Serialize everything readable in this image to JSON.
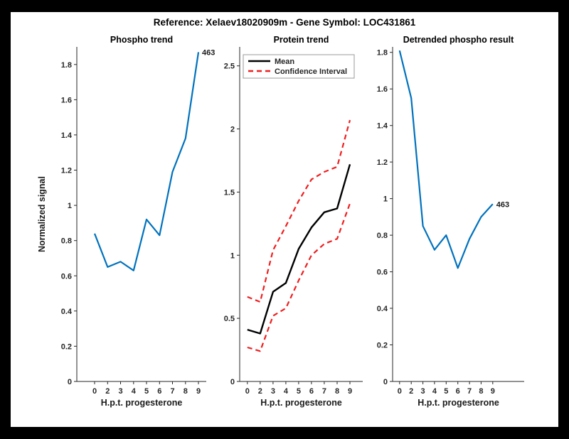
{
  "header": {
    "title": "Reference:  Xelaev18020909m - Gene Symbol:  LOC431861"
  },
  "chart_data": [
    {
      "type": "line",
      "title": "Phospho trend",
      "xlabel": "H.p.t. progesterone",
      "ylabel": "Normalized signal",
      "x_tick_labels": [
        "0",
        "2",
        "3",
        "4",
        "5",
        "6",
        "7",
        "8",
        "9"
      ],
      "yticks": [
        "0",
        "0.2",
        "0.4",
        "0.6",
        "0.8",
        "1",
        "1.2",
        "1.4",
        "1.6",
        "1.8"
      ],
      "ylim": [
        0,
        1.9
      ],
      "xlim": [
        -1.37,
        8.6
      ],
      "grid": false,
      "legend_position": "none",
      "series": [
        {
          "name": "phospho-signal",
          "color": "#0072bd",
          "dash": false,
          "values": [
            0.84,
            0.65,
            0.68,
            0.63,
            0.92,
            0.83,
            1.19,
            1.38,
            1.87
          ],
          "end_label": "463"
        }
      ]
    },
    {
      "type": "line",
      "title": "Protein trend",
      "xlabel": "H.p.t. progesterone",
      "ylabel": "",
      "x_tick_labels": [
        "0",
        "2",
        "3",
        "4",
        "5",
        "6",
        "7",
        "8",
        "9"
      ],
      "yticks": [
        "0",
        "0.5",
        "1",
        "1.5",
        "2",
        "2.5"
      ],
      "ylim": [
        0,
        2.65
      ],
      "xlim": [
        -0.6,
        9.0
      ],
      "grid": false,
      "legend_position": "top-left",
      "legend": {
        "entries": [
          {
            "label": "Mean",
            "color": "#000000",
            "dash": false
          },
          {
            "label": "Confidence Interval",
            "color": "#f01e1e",
            "dash": true
          }
        ]
      },
      "series": [
        {
          "name": "confidence-upper",
          "color": "#f01e1e",
          "dash": true,
          "values": [
            0.67,
            0.63,
            1.04,
            1.23,
            1.43,
            1.6,
            1.66,
            1.7,
            2.07
          ],
          "end_label": null
        },
        {
          "name": "confidence-lower",
          "color": "#f01e1e",
          "dash": true,
          "values": [
            0.27,
            0.24,
            0.52,
            0.58,
            0.8,
            1.0,
            1.09,
            1.13,
            1.41
          ],
          "end_label": null
        },
        {
          "name": "mean",
          "color": "#000000",
          "dash": false,
          "values": [
            0.41,
            0.38,
            0.71,
            0.78,
            1.05,
            1.22,
            1.34,
            1.37,
            1.72
          ],
          "end_label": null
        }
      ]
    },
    {
      "type": "line",
      "title": "Detrended phospho result",
      "xlabel": "H.p.t. progesterone",
      "ylabel": "",
      "x_tick_labels": [
        "0",
        "2",
        "3",
        "4",
        "5",
        "6",
        "7",
        "8",
        "9"
      ],
      "yticks": [
        "0",
        "0.2",
        "0.4",
        "0.6",
        "0.8",
        "1",
        "1.2",
        "1.4",
        "1.6",
        "1.8"
      ],
      "ylim": [
        0,
        1.83
      ],
      "xlim": [
        -0.6,
        10.7
      ],
      "grid": false,
      "legend_position": "none",
      "series": [
        {
          "name": "detrended-phospho",
          "color": "#0072bd",
          "dash": false,
          "values": [
            1.81,
            1.55,
            0.85,
            0.72,
            0.8,
            0.62,
            0.78,
            0.9,
            0.97
          ],
          "end_label": "463"
        }
      ]
    }
  ]
}
